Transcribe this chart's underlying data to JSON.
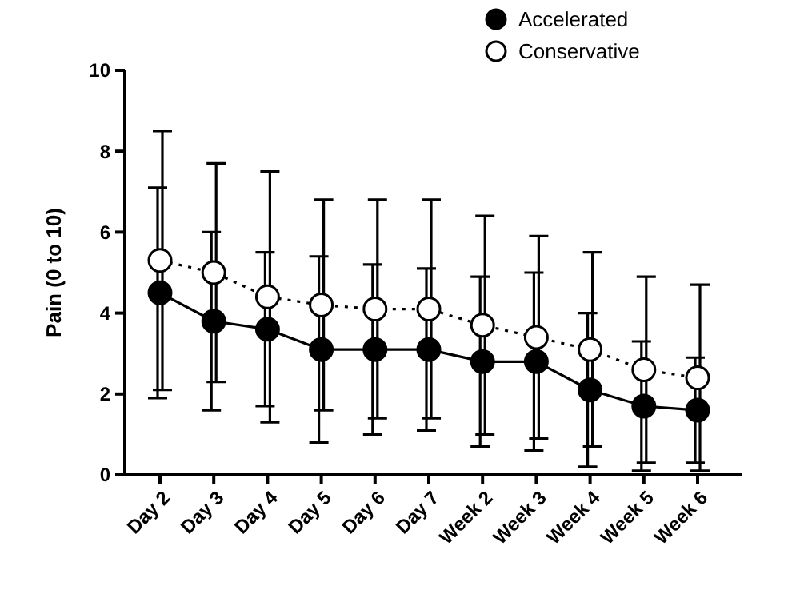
{
  "chart_data": {
    "type": "line",
    "ylabel": "Pain (0 to 10)",
    "categories": [
      "Day 2",
      "Day 3",
      "Day 4",
      "Day 5",
      "Day 6",
      "Day 7",
      "Week 2",
      "Week 3",
      "Week 4",
      "Week 5",
      "Week 6"
    ],
    "series": [
      {
        "name": "Accelerated",
        "color": "#000000",
        "line_style": "solid",
        "marker": "circle",
        "values": [
          4.5,
          3.8,
          3.6,
          3.1,
          3.1,
          3.1,
          2.8,
          2.8,
          2.1,
          1.7,
          1.6
        ],
        "errors": [
          2.6,
          2.2,
          1.9,
          2.3,
          2.1,
          2.0,
          2.1,
          2.2,
          1.9,
          1.6,
          1.3
        ]
      },
      {
        "name": "Conservative",
        "color": "#000000",
        "line_style": "dotted",
        "marker": "circle",
        "values": [
          5.3,
          5.0,
          4.4,
          4.2,
          4.1,
          4.1,
          3.7,
          3.4,
          3.1,
          2.6,
          2.4
        ],
        "errors": [
          3.2,
          2.7,
          3.1,
          2.6,
          2.7,
          2.7,
          2.7,
          2.5,
          2.4,
          2.3,
          2.3
        ]
      }
    ],
    "ylim": [
      0,
      10
    ],
    "yticks": [
      0,
      2,
      4,
      6,
      8,
      10
    ],
    "legend": "top right"
  }
}
